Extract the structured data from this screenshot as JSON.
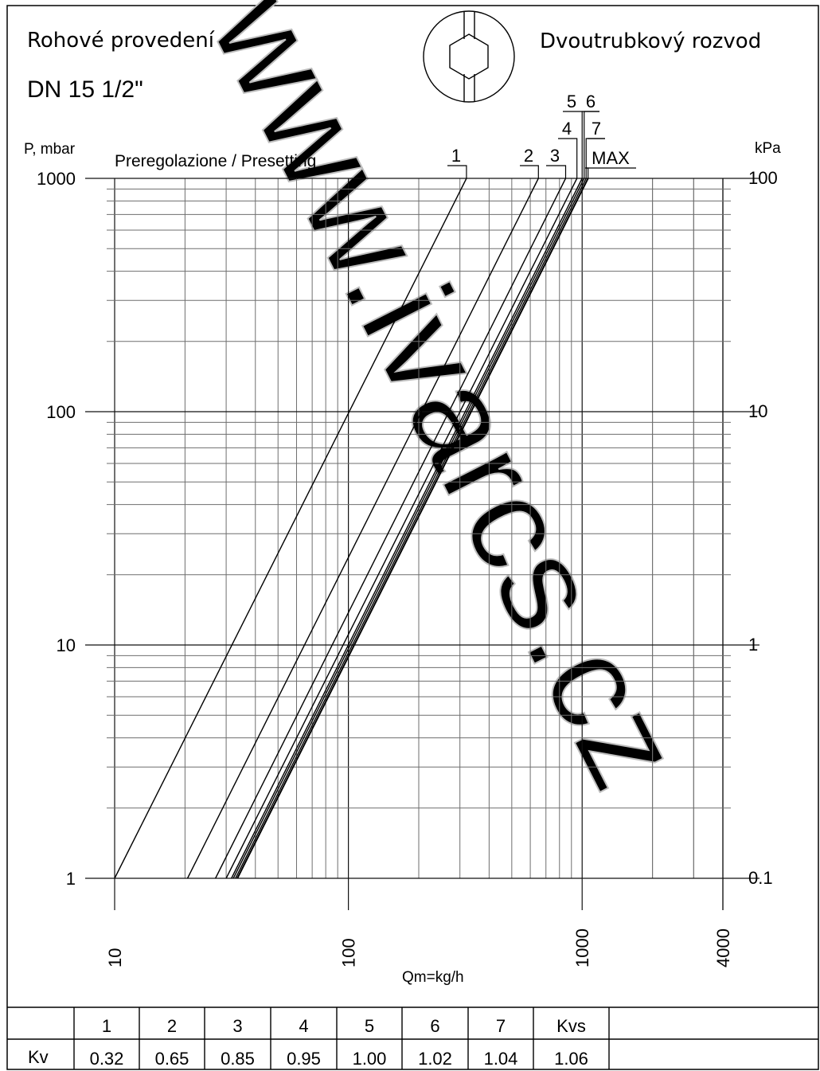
{
  "header": {
    "title_left": "Rohové provedení",
    "size_label": "DN 15 1/2\"",
    "title_right": "Dvoutrubkový rozvod"
  },
  "chart_data": {
    "type": "line",
    "title": "Preregolazione / Presetting",
    "xlabel": "Qm=kg/h",
    "ylabel": "P, mbar",
    "ylabel_right": "kPa",
    "x_scale": "log",
    "y_scale": "log",
    "xlim": [
      10,
      4000
    ],
    "ylim": [
      1,
      1000
    ],
    "grid": true,
    "x_ticks": [
      "10",
      "100",
      "1000",
      "4000"
    ],
    "y_ticks_left": [
      "1",
      "10",
      "100",
      "1000"
    ],
    "y_ticks_right": [
      "0.1",
      "1",
      "10",
      "100"
    ],
    "series": [
      {
        "name": "1",
        "kv": 0.32,
        "x": [
          10,
          320
        ],
        "y": [
          1,
          1000
        ]
      },
      {
        "name": "2",
        "kv": 0.65,
        "x": [
          20.5,
          650
        ],
        "y": [
          1,
          1000
        ]
      },
      {
        "name": "3",
        "kv": 0.85,
        "x": [
          27,
          850
        ],
        "y": [
          1,
          1000
        ]
      },
      {
        "name": "4",
        "kv": 0.95,
        "x": [
          30,
          950
        ],
        "y": [
          1,
          1000
        ]
      },
      {
        "name": "5",
        "kv": 1.0,
        "x": [
          31.6,
          1000
        ],
        "y": [
          1,
          1000
        ]
      },
      {
        "name": "6",
        "kv": 1.02,
        "x": [
          32.2,
          1020
        ],
        "y": [
          1,
          1000
        ]
      },
      {
        "name": "7",
        "kv": 1.04,
        "x": [
          32.9,
          1040
        ],
        "y": [
          1,
          1000
        ]
      },
      {
        "name": "MAX",
        "kv": 1.06,
        "x": [
          33.5,
          1060
        ],
        "y": [
          1,
          1000
        ]
      }
    ]
  },
  "table": {
    "headers": [
      "",
      "1",
      "2",
      "3",
      "4",
      "5",
      "6",
      "7",
      "Kvs"
    ],
    "row_label": "Kv",
    "values": [
      "0.32",
      "0.65",
      "0.85",
      "0.95",
      "1.00",
      "1.02",
      "1.04",
      "1.06"
    ]
  },
  "watermark": "www.ivarcs.cz"
}
